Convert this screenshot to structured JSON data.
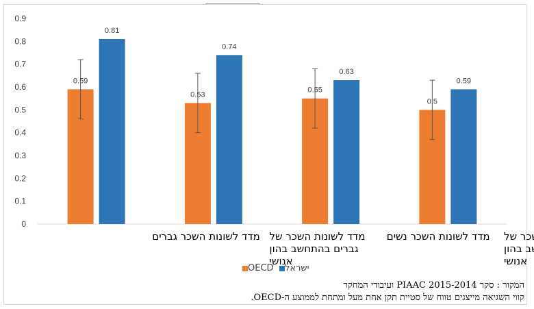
{
  "chart_data": {
    "type": "bar",
    "categories": [
      {
        "lines": [
          "מדד לשונות השכר גברים"
        ]
      },
      {
        "lines": [
          "מדד לשונות השכר של",
          "גברים בהתחשב בהון",
          "אנושי"
        ]
      },
      {
        "lines": [
          "מדד לשונות השכר נשים"
        ]
      },
      {
        "lines": [
          "מדד לשונות השכר של",
          "נשים בהתחשב בהון",
          "אנושי"
        ]
      }
    ],
    "series": [
      {
        "name": "OECD",
        "color": "#ed7d31",
        "values": [
          0.59,
          0.53,
          0.55,
          0.5
        ],
        "value_labels": [
          "0.59",
          "0.53",
          "0.55",
          "0.5"
        ],
        "error_low": [
          0.46,
          0.4,
          0.42,
          0.37
        ],
        "error_high": [
          0.72,
          0.66,
          0.68,
          0.63
        ]
      },
      {
        "name": "ישראל",
        "color": "#2e75b6",
        "values": [
          0.81,
          0.74,
          0.63,
          0.59
        ],
        "value_labels": [
          "0.81",
          "0.74",
          "0.63",
          "0.59"
        ]
      }
    ],
    "ylim": [
      0,
      0.9
    ],
    "yticks": [
      "0",
      "0.1",
      "0.2",
      "0.3",
      "0.4",
      "0.5",
      "0.6",
      "0.7",
      "0.8",
      "0.9"
    ],
    "grid": false,
    "legend_position": "bottom"
  },
  "legend": {
    "oecd": "OECD",
    "israel": "ישראל"
  },
  "notes": {
    "source": "המקור : סקר PIAAC 2015-2014 ועיבודי המחקר",
    "error_bars": "קווי השגיאה מייצגים טווח של סטיית תקן אחת מעל ומתחת לממוצע ה-OECD."
  }
}
